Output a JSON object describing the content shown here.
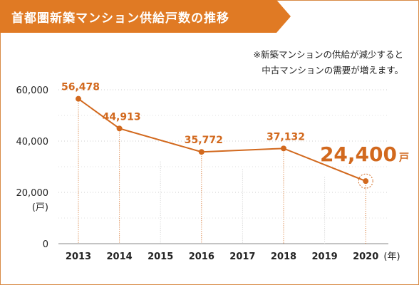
{
  "chart_data": {
    "type": "line",
    "title": "首都圏新築マンション供給戸数の推移",
    "note_lines": [
      "※新築マンションの供給が減少すると",
      "中古マンションの需要が増えます。"
    ],
    "x": [
      2013,
      2014,
      2015,
      2016,
      2017,
      2018,
      2019,
      2020
    ],
    "x_tick_labels": [
      "2013",
      "2014",
      "2015",
      "2016",
      "2017",
      "2018",
      "2019",
      "2020"
    ],
    "x_unit": "(年)",
    "y_unit": "(戸)",
    "ylim": [
      0,
      60000
    ],
    "y_ticks": [
      0,
      20000,
      40000,
      60000
    ],
    "y_tick_labels": [
      "0",
      "20,000",
      "40,000",
      "60,000"
    ],
    "grid": "horizontal-dotted",
    "series": [
      {
        "points": [
          {
            "x": 2013,
            "y": 56478,
            "label": "56,478"
          },
          {
            "x": 2014,
            "y": 44913,
            "label": "44,913"
          },
          {
            "x": 2016,
            "y": 35772,
            "label": "35,772"
          },
          {
            "x": 2018,
            "y": 37132,
            "label": "37,132"
          },
          {
            "x": 2020,
            "y": 24400,
            "label": "24,400"
          }
        ]
      }
    ],
    "highlight": {
      "value": "24,400",
      "unit": "戸"
    },
    "colors": {
      "accent": "#d2691e",
      "banner": "#e07a24",
      "grid": "#cccccc"
    }
  }
}
